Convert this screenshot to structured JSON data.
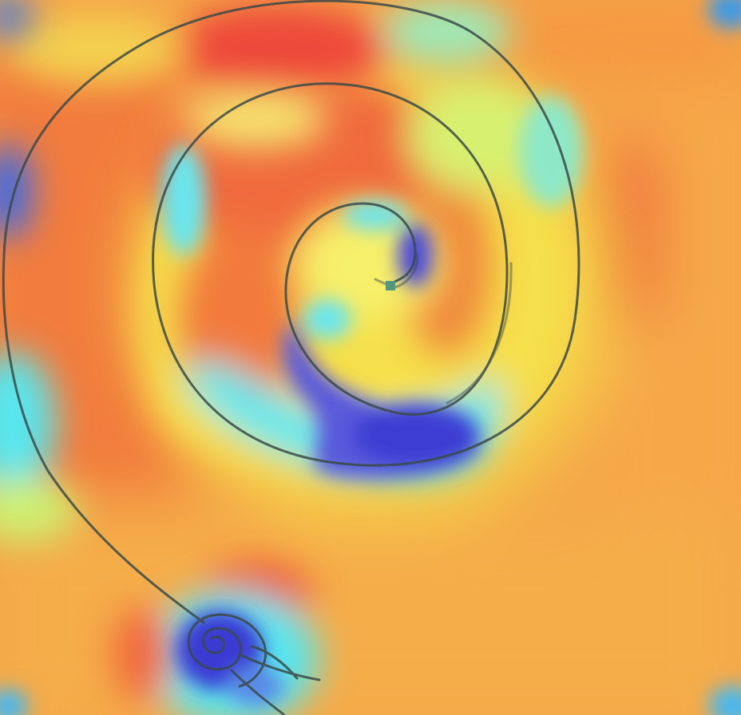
{
  "image": {
    "kind": "saliency-heatmap-overlay",
    "colormap": "jet",
    "palette": {
      "low": "#3a3adb",
      "low_mid": "#4fe3f0",
      "mid": "#f5f54a",
      "high_mid": "#f7a040",
      "high": "#ef4a3a"
    },
    "subject_icon": "spiral-drawing-icon",
    "stroke_color": "#3a4a48"
  }
}
